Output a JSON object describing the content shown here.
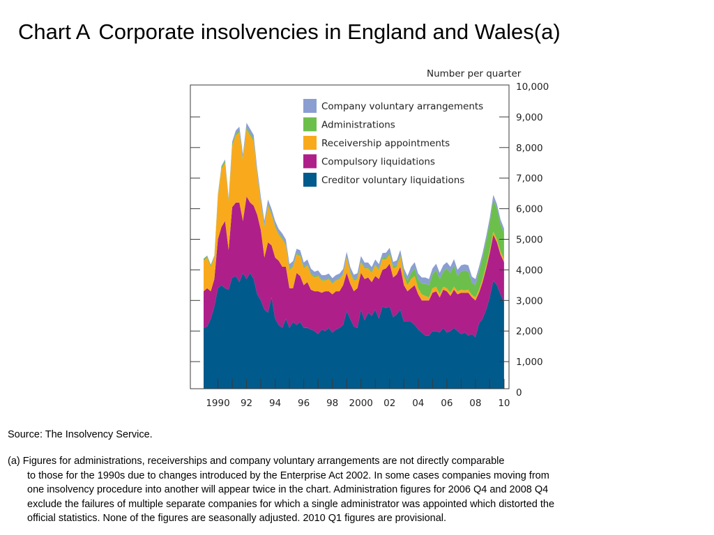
{
  "page": {
    "title_prefix": "Chart A",
    "title_main": "Corporate insolvencies in England and Wales(a)",
    "source": "Source:  The Insolvency Service.",
    "note_lines": [
      "(a)  Figures for administrations, receiverships and company voluntary arrangements are not directly comparable",
      "to those for the 1990s due to changes introduced by the Enterprise Act 2002.  In some cases companies moving from",
      "one insolvency procedure into another will appear twice in the chart.  Administration figures for 2006 Q4 and 2008 Q4",
      "exclude the failures of multiple separate companies for which a single administrator was appointed which distorted the",
      "official statistics.  None of the figures are seasonally adjusted.  2010 Q1 figures are provisional."
    ]
  },
  "chart_data": {
    "type": "area",
    "stacked": true,
    "units_label": "Number per quarter",
    "ylim": [
      0,
      10000
    ],
    "y_ticks": [
      "0",
      "1,000",
      "2,000",
      "3,000",
      "4,000",
      "5,000",
      "6,000",
      "7,000",
      "8,000",
      "9,000",
      "10,000"
    ],
    "y_tick_values": [
      0,
      1000,
      2000,
      3000,
      4000,
      5000,
      6000,
      7000,
      8000,
      9000,
      10000
    ],
    "x_start_year": 1989,
    "x_ticks": [
      {
        "label": "1990",
        "year": 1990
      },
      {
        "label": "92",
        "year": 1992
      },
      {
        "label": "94",
        "year": 1994
      },
      {
        "label": "96",
        "year": 1996
      },
      {
        "label": "98",
        "year": 1998
      },
      {
        "label": "2000",
        "year": 2000
      },
      {
        "label": "02",
        "year": 2002
      },
      {
        "label": "04",
        "year": 2004
      },
      {
        "label": "06",
        "year": 2006
      },
      {
        "label": "08",
        "year": 2008
      },
      {
        "label": "10",
        "year": 2010
      }
    ],
    "x": [
      "1989 Q1",
      "1989 Q2",
      "1989 Q3",
      "1989 Q4",
      "1990 Q1",
      "1990 Q2",
      "1990 Q3",
      "1990 Q4",
      "1991 Q1",
      "1991 Q2",
      "1991 Q3",
      "1991 Q4",
      "1992 Q1",
      "1992 Q2",
      "1992 Q3",
      "1992 Q4",
      "1993 Q1",
      "1993 Q2",
      "1993 Q3",
      "1993 Q4",
      "1994 Q1",
      "1994 Q2",
      "1994 Q3",
      "1994 Q4",
      "1995 Q1",
      "1995 Q2",
      "1995 Q3",
      "1995 Q4",
      "1996 Q1",
      "1996 Q2",
      "1996 Q3",
      "1996 Q4",
      "1997 Q1",
      "1997 Q2",
      "1997 Q3",
      "1997 Q4",
      "1998 Q1",
      "1998 Q2",
      "1998 Q3",
      "1998 Q4",
      "1999 Q1",
      "1999 Q2",
      "1999 Q3",
      "1999 Q4",
      "2000 Q1",
      "2000 Q2",
      "2000 Q3",
      "2000 Q4",
      "2001 Q1",
      "2001 Q2",
      "2001 Q3",
      "2001 Q4",
      "2002 Q1",
      "2002 Q2",
      "2002 Q3",
      "2002 Q4",
      "2003 Q1",
      "2003 Q2",
      "2003 Q3",
      "2003 Q4",
      "2004 Q1",
      "2004 Q2",
      "2004 Q3",
      "2004 Q4",
      "2005 Q1",
      "2005 Q2",
      "2005 Q3",
      "2005 Q4",
      "2006 Q1",
      "2006 Q2",
      "2006 Q3",
      "2006 Q4",
      "2007 Q1",
      "2007 Q2",
      "2007 Q3",
      "2007 Q4",
      "2008 Q1",
      "2008 Q2",
      "2008 Q3",
      "2008 Q4",
      "2009 Q1",
      "2009 Q2",
      "2009 Q3",
      "2009 Q4",
      "2010 Q1"
    ],
    "series": [
      {
        "name": "Creditor voluntary liquidations",
        "color": "#005a8c",
        "values": [
          2100,
          2150,
          2400,
          2800,
          3400,
          3500,
          3400,
          3350,
          3750,
          3800,
          3600,
          3900,
          3700,
          3900,
          3700,
          3200,
          3000,
          2700,
          2600,
          3100,
          2400,
          2200,
          2100,
          2400,
          2100,
          2300,
          2200,
          2300,
          2100,
          2100,
          2050,
          2000,
          1900,
          2050,
          2000,
          2100,
          1950,
          2050,
          2100,
          2200,
          2650,
          2400,
          2150,
          2100,
          2700,
          2350,
          2600,
          2500,
          2700,
          2400,
          2800,
          2750,
          2800,
          2450,
          2550,
          2700,
          2300,
          2300,
          2300,
          2200,
          2050,
          1950,
          1850,
          1850,
          2000,
          2000,
          1950,
          2100,
          1950,
          2000,
          2100,
          2000,
          1900,
          1950,
          1850,
          1900,
          1800,
          2250,
          2400,
          2700,
          3100,
          3650,
          3500,
          3200,
          2950
        ]
      },
      {
        "name": "Compulsory liquidations",
        "color": "#ae1f8a",
        "values": [
          1200,
          1250,
          900,
          900,
          1600,
          1900,
          2200,
          1300,
          2300,
          2400,
          2600,
          1700,
          2700,
          2300,
          2400,
          2600,
          2300,
          1700,
          2300,
          1700,
          2000,
          2100,
          2000,
          1700,
          1300,
          1100,
          1700,
          1500,
          1400,
          1500,
          1300,
          1300,
          1400,
          1200,
          1300,
          1200,
          1250,
          1250,
          1200,
          1300,
          1250,
          1150,
          1150,
          1300,
          1200,
          1350,
          1150,
          1100,
          1100,
          1300,
          1200,
          1300,
          1400,
          1300,
          1300,
          1400,
          1200,
          1000,
          1100,
          1300,
          1150,
          1050,
          1150,
          1150,
          1250,
          1300,
          1150,
          1250,
          1350,
          1150,
          1250,
          1200,
          1350,
          1300,
          1400,
          1200,
          1200,
          1000,
          1200,
          1350,
          1450,
          1500,
          1400,
          1300,
          1300
        ]
      },
      {
        "name": "Receivership appointments",
        "color": "#f9aa1c",
        "values": [
          1000,
          1000,
          800,
          700,
          1400,
          1900,
          1900,
          1600,
          2000,
          2200,
          2300,
          2000,
          2200,
          2200,
          2100,
          1300,
          900,
          1000,
          1200,
          1000,
          1000,
          850,
          900,
          700,
          600,
          700,
          600,
          650,
          550,
          550,
          500,
          450,
          500,
          400,
          350,
          400,
          350,
          350,
          400,
          350,
          500,
          350,
          350,
          300,
          350,
          350,
          300,
          300,
          350,
          300,
          350,
          300,
          300,
          300,
          250,
          350,
          300,
          200,
          300,
          300,
          200,
          200,
          150,
          100,
          150,
          150,
          100,
          100,
          100,
          100,
          100,
          100,
          100,
          80,
          100,
          80,
          100,
          100,
          100,
          100,
          100,
          100,
          100,
          100,
          100
        ]
      },
      {
        "name": "Administrations",
        "color": "#6cbf4b",
        "values": [
          50,
          50,
          50,
          50,
          50,
          60,
          60,
          50,
          60,
          60,
          60,
          50,
          60,
          60,
          60,
          50,
          40,
          50,
          50,
          40,
          50,
          40,
          40,
          40,
          40,
          40,
          40,
          40,
          40,
          40,
          40,
          40,
          30,
          30,
          30,
          30,
          30,
          30,
          30,
          30,
          40,
          40,
          40,
          40,
          50,
          40,
          40,
          40,
          40,
          40,
          50,
          60,
          70,
          60,
          60,
          50,
          100,
          150,
          200,
          250,
          280,
          350,
          400,
          400,
          450,
          550,
          500,
          500,
          650,
          650,
          700,
          500,
          600,
          650,
          600,
          400,
          400,
          600,
          700,
          800,
          900,
          1050,
          1000,
          900,
          850
        ]
      },
      {
        "name": "Company voluntary arrangements",
        "color": "#8b9ed2",
        "values": [
          20,
          20,
          20,
          20,
          30,
          40,
          50,
          60,
          80,
          100,
          120,
          130,
          150,
          150,
          150,
          150,
          150,
          150,
          150,
          150,
          150,
          150,
          150,
          150,
          150,
          150,
          150,
          150,
          150,
          150,
          150,
          150,
          150,
          150,
          150,
          150,
          150,
          150,
          150,
          150,
          150,
          150,
          150,
          150,
          150,
          150,
          150,
          150,
          150,
          150,
          150,
          150,
          150,
          150,
          150,
          150,
          150,
          150,
          200,
          200,
          200,
          200,
          200,
          200,
          200,
          200,
          200,
          200,
          200,
          200,
          200,
          200,
          200,
          200,
          200,
          200,
          200,
          150,
          150,
          150,
          150,
          150,
          150,
          150,
          150
        ]
      }
    ],
    "legend_position": "top-left inside plot",
    "grid": false
  }
}
